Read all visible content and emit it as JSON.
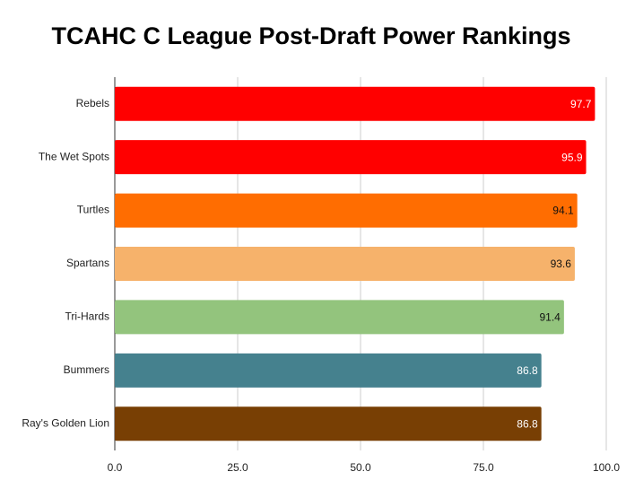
{
  "chart_data": {
    "type": "hbar",
    "title": "TCAHC C League Post-Draft Power Rankings",
    "categories": [
      "Rebels",
      "The Wet Spots",
      "Turtles",
      "Spartans",
      "Tri-Hards",
      "Bummers",
      "Ray's Golden Lion"
    ],
    "values": [
      97.7,
      95.9,
      94.1,
      93.6,
      91.4,
      86.8,
      86.8
    ],
    "colors": [
      "#ff0000",
      "#ff0000",
      "#ff6d01",
      "#f6b26b",
      "#93c47d",
      "#45818e",
      "#783f04"
    ],
    "xlim": [
      0,
      100
    ],
    "xticks": [
      {
        "value": 0,
        "label": "0.0"
      },
      {
        "value": 25,
        "label": "25.0"
      },
      {
        "value": 50,
        "label": "50.0"
      },
      {
        "value": 75,
        "label": "75.0"
      },
      {
        "value": 100,
        "label": "100.0"
      }
    ],
    "grid": true
  }
}
